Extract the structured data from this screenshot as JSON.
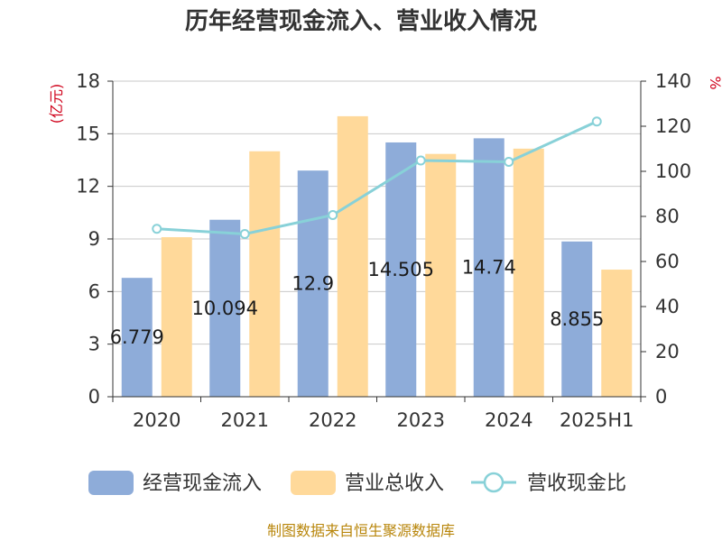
{
  "chart_data": {
    "type": "bar",
    "title": "历年经营现金流入、营业收入情况",
    "categories": [
      "2020",
      "2021",
      "2022",
      "2023",
      "2024",
      "2025H1"
    ],
    "series": [
      {
        "name": "经营现金流入",
        "type": "bar",
        "axis": "left",
        "color": "#8eacd9",
        "values": [
          6.779,
          10.094,
          12.9,
          14.505,
          14.74,
          8.855
        ],
        "data_labels": [
          "6.779",
          "10.094",
          "12.9",
          "14.505",
          "14.74",
          "8.855"
        ]
      },
      {
        "name": "营业总收入",
        "type": "bar",
        "axis": "left",
        "color": "#ffd99a",
        "values": [
          9.1,
          14.0,
          16.0,
          13.85,
          14.15,
          7.25
        ]
      },
      {
        "name": "营收现金比",
        "type": "line",
        "axis": "right",
        "color": "#88d1d8",
        "values": [
          74.5,
          72.2,
          80.6,
          104.8,
          104.2,
          122.1
        ]
      }
    ],
    "y_left": {
      "unit": "(亿元)",
      "ylim": [
        0,
        18
      ],
      "ticks": [
        0,
        3,
        6,
        9,
        12,
        15,
        18
      ]
    },
    "y_right": {
      "unit": "%",
      "ylim": [
        0,
        140
      ],
      "ticks": [
        0,
        20,
        40,
        60,
        80,
        100,
        120,
        140
      ]
    },
    "grid": true,
    "legend_position": "bottom"
  },
  "source": "制图数据来自恒生聚源数据库"
}
